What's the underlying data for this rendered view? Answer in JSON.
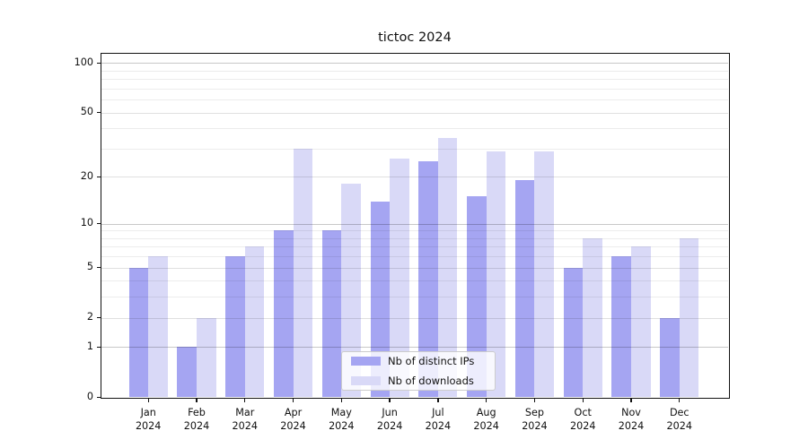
{
  "title": "tictoc 2024",
  "chart_data": {
    "type": "bar",
    "title": "tictoc 2024",
    "categories": [
      "Jan 2024",
      "Feb 2024",
      "Mar 2024",
      "Apr 2024",
      "May 2024",
      "Jun 2024",
      "Jul 2024",
      "Aug 2024",
      "Sep 2024",
      "Oct 2024",
      "Nov 2024",
      "Dec 2024"
    ],
    "series": [
      {
        "name": "Nb of distinct IPs",
        "color": "#a5a5f2",
        "values": [
          5,
          1,
          6,
          9,
          9,
          14,
          25,
          15,
          19,
          5,
          6,
          2
        ]
      },
      {
        "name": "Nb of downloads",
        "color": "#d9d9f7",
        "values": [
          6,
          2,
          7,
          30,
          18,
          26,
          35,
          29,
          29,
          8,
          7,
          8
        ]
      }
    ],
    "xlabel": "",
    "ylabel": "",
    "yscale": "log1p (position proportional to log10(1+y), allows 0)",
    "ylim": [
      0,
      113
    ],
    "y_ticks": [
      0,
      1,
      2,
      5,
      10,
      20,
      50,
      100
    ],
    "y_minor_gridlines": [
      3,
      4,
      6,
      7,
      8,
      9,
      30,
      40,
      60,
      70,
      80,
      90
    ],
    "y_strong_gridlines": [
      1,
      10,
      100
    ],
    "grid": "on",
    "legend_position": "lower center"
  }
}
